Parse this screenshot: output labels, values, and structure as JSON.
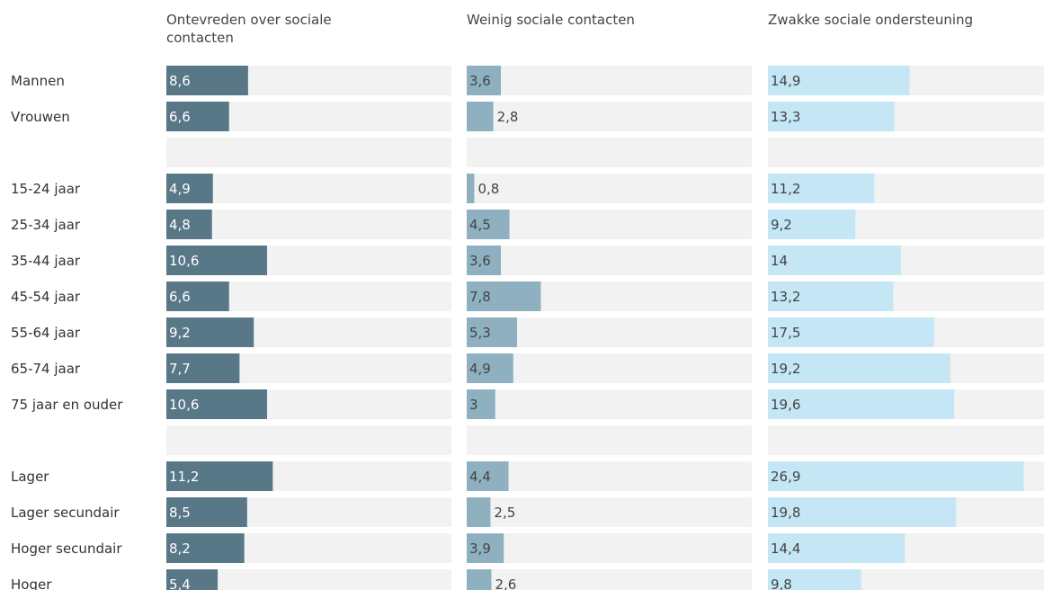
{
  "chart_data": {
    "type": "bar",
    "categories": [
      "Mannen",
      "Vrouwen",
      null,
      "15-24 jaar",
      "25-34 jaar",
      "35-44 jaar",
      "45-54 jaar",
      "55-64 jaar",
      "65-74 jaar",
      "75 jaar en ouder",
      null,
      "Lager",
      "Lager secundair",
      "Hoger secundair",
      "Hoger"
    ],
    "xlim": [
      0,
      30
    ],
    "series": [
      {
        "name": "Ontevreden over sociale contacten",
        "color": "#587787",
        "values": [
          8.6,
          6.6,
          null,
          4.9,
          4.8,
          10.6,
          6.6,
          9.2,
          7.7,
          10.6,
          null,
          11.2,
          8.5,
          8.2,
          5.4
        ],
        "value_labels": [
          "8,6",
          "6,6",
          null,
          "4,9",
          "4,8",
          "10,6",
          "6,6",
          "9,2",
          "7,7",
          "10,6",
          null,
          "11,2",
          "8,5",
          "8,2",
          "5,4"
        ]
      },
      {
        "name": "Weinig sociale contacten",
        "color": "#8fb0c0",
        "values": [
          3.6,
          2.8,
          null,
          0.8,
          4.5,
          3.6,
          7.8,
          5.3,
          4.9,
          3,
          null,
          4.4,
          2.5,
          3.9,
          2.6
        ],
        "value_labels": [
          "3,6",
          "2,8",
          null,
          "0,8",
          "4,5",
          "3,6",
          "7,8",
          "5,3",
          "4,9",
          "3",
          null,
          "4,4",
          "2,5",
          "3,9",
          "2,6"
        ]
      },
      {
        "name": "Zwakke sociale ondersteuning",
        "color": "#c4e6f5",
        "values": [
          14.9,
          13.3,
          null,
          11.2,
          9.2,
          14,
          13.2,
          17.5,
          19.2,
          19.6,
          null,
          26.9,
          19.8,
          14.4,
          9.8
        ],
        "value_labels": [
          "14,9",
          "13,3",
          null,
          "11,2",
          "9,2",
          "14",
          "13,2",
          "17,5",
          "19,2",
          "19,6",
          null,
          "26,9",
          "19,8",
          "14,4",
          "9,8"
        ]
      }
    ]
  }
}
